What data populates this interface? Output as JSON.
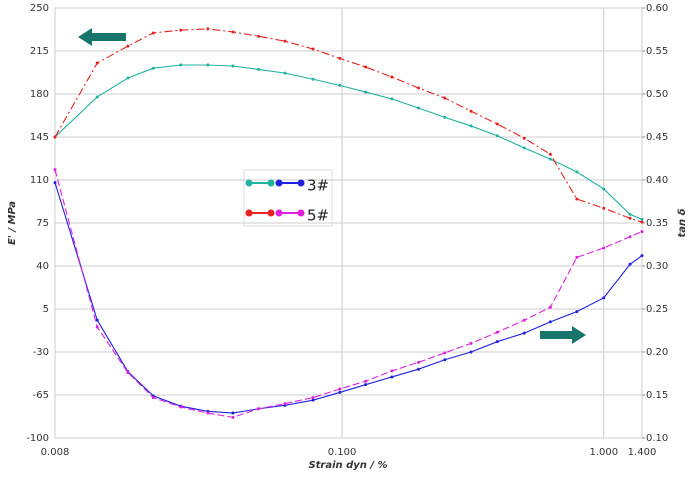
{
  "chart_data": {
    "type": "line",
    "x_label": "Strain dyn  / %",
    "y_label": "E'  / MPa",
    "y2_label": "tan δ",
    "x_log": true,
    "grid": true,
    "xlim": [
      0.008,
      1.4
    ],
    "xticks": [
      0.008,
      {
        "value": 0.1,
        "label": "0.100"
      },
      {
        "value": 1,
        "label": "1.000"
      },
      {
        "value": 1.4,
        "label": "1.400"
      }
    ],
    "ylim": [
      -100,
      250
    ],
    "yticks": [
      -100,
      -65,
      -30,
      5,
      40,
      75,
      110,
      145,
      180,
      215,
      250
    ],
    "y2lim": [
      0.1,
      0.6
    ],
    "y2ticks": [
      {
        "value": 0.1,
        "label": "0.10"
      },
      0.15,
      {
        "value": 0.2,
        "label": "0.20"
      },
      0.25,
      {
        "value": 0.3,
        "label": "0.30"
      },
      0.35,
      {
        "value": 0.4,
        "label": "0.40"
      },
      0.45,
      {
        "value": 0.5,
        "label": "0.50"
      },
      0.55,
      {
        "value": 0.6,
        "label": "0.60"
      }
    ],
    "x": [
      0.008,
      0.0116,
      0.0152,
      0.019,
      0.0242,
      0.0307,
      0.0383,
      0.048,
      0.0605,
      0.0775,
      0.098,
      0.123,
      0.155,
      0.196,
      0.247,
      0.311,
      0.392,
      0.497,
      0.625,
      0.789,
      1.0,
      1.26,
      1.4
    ],
    "series": [
      {
        "name": "3#",
        "color": "#20b2a0",
        "line_style": "solid",
        "values": [
          145,
          177.6,
          193,
          201,
          203.6,
          203.6,
          202.8,
          200,
          197,
          192,
          187,
          181.6,
          176,
          168.6,
          161,
          154,
          146,
          136,
          127,
          116.6,
          102.7,
          82,
          78
        ]
      },
      {
        "name": "3#",
        "color": "#2020e0",
        "line_style": "solid",
        "axis": "y2",
        "values": [
          0.397,
          0.237,
          0.177,
          0.149,
          0.137,
          0.131,
          0.129,
          0.134,
          0.138,
          0.144,
          0.153,
          0.162,
          0.171,
          0.18,
          0.191,
          0.2,
          0.212,
          0.222,
          0.235,
          0.247,
          0.263,
          0.302,
          0.312
        ]
      },
      {
        "name": "5#",
        "color": "#e82020",
        "line_style": "dashdot",
        "values": [
          145,
          205.2,
          219,
          229.7,
          232,
          233,
          230.5,
          227,
          223,
          216.6,
          209,
          202,
          193.8,
          184.9,
          176.7,
          166,
          155.6,
          144,
          131,
          94.5,
          87,
          78.9,
          75.7
        ]
      },
      {
        "name": "5#",
        "color": "#e020e0",
        "line_style": "dashed",
        "axis": "y2",
        "values": [
          0.412,
          0.229,
          0.176,
          0.147,
          0.136,
          0.129,
          0.124,
          0.134,
          0.14,
          0.147,
          0.157,
          0.166,
          0.178,
          0.188,
          0.199,
          0.21,
          0.223,
          0.237,
          0.252,
          0.31,
          0.321,
          0.334,
          0.34
        ]
      }
    ]
  }
}
